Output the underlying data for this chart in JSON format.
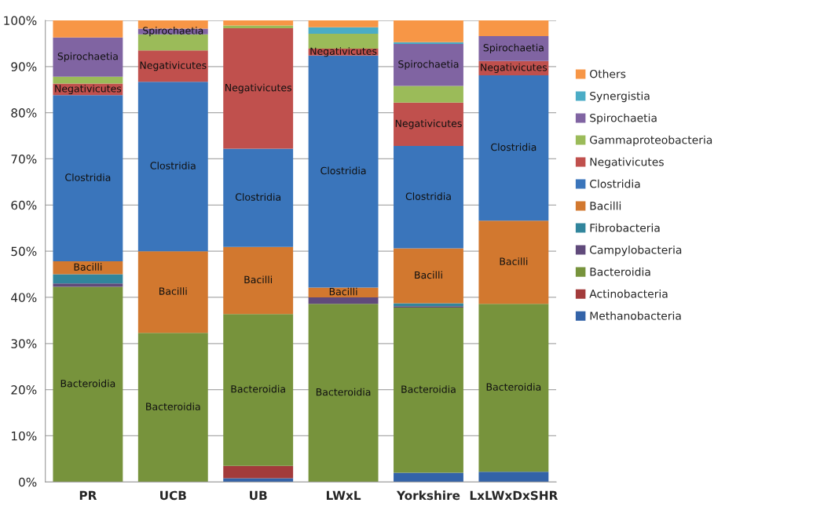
{
  "chart_data": {
    "type": "bar",
    "stacked": true,
    "categories": [
      "PR",
      "UCB",
      "UB",
      "LWxL",
      "Yorkshire",
      "LxLWxDxSHR"
    ],
    "series": [
      {
        "name": "Methanobacteria",
        "color": "#3363a8",
        "values": [
          0,
          0,
          0.8,
          0,
          2.0,
          2.2
        ]
      },
      {
        "name": "Actinobacteria",
        "color": "#a33b3b",
        "values": [
          0,
          0,
          2.7,
          0,
          0,
          0
        ]
      },
      {
        "name": "Bacteroidia",
        "color": "#77933c",
        "values": [
          42.3,
          32.3,
          32.9,
          38.6,
          35.8,
          36.4
        ],
        "value_labels": [
          "Bacteroidia",
          "Bacteroidia",
          "Bacteroidia",
          "Bacteroidia",
          "Bacteroidia",
          "Bacteroidia"
        ]
      },
      {
        "name": "Campylobacteria",
        "color": "#604a7b",
        "values": [
          0.7,
          0,
          0,
          1.4,
          0.3,
          0
        ]
      },
      {
        "name": "Fibrobacteria",
        "color": "#31859c",
        "values": [
          2.0,
          0,
          0,
          0,
          0.6,
          0
        ]
      },
      {
        "name": "Bacilli",
        "color": "#d2782f",
        "values": [
          2.8,
          17.7,
          14.5,
          2.1,
          11.9,
          18.0
        ],
        "value_labels": [
          "Bacilli",
          "Bacilli",
          "Bacilli",
          "Bacilli",
          "Bacilli",
          "Bacilli"
        ]
      },
      {
        "name": "Clostridia",
        "color": "#3a75bb",
        "values": [
          36.0,
          36.7,
          21.3,
          50.3,
          22.2,
          31.5
        ],
        "value_labels": [
          "Clostridia",
          "Clostridia",
          "Clostridia",
          "Clostridia",
          "Clostridia",
          "Clostridia"
        ]
      },
      {
        "name": "Negativicutes",
        "color": "#c0504d",
        "values": [
          2.5,
          6.8,
          26.1,
          1.5,
          9.4,
          3.1
        ],
        "value_labels": [
          "Negativicutes",
          "Negativicutes",
          "Negativicutes",
          "Negativicutes",
          "Negativicutes",
          "Negativicutes"
        ]
      },
      {
        "name": "Gammaproteobacteria",
        "color": "#9bbb59",
        "values": [
          1.5,
          3.5,
          0.6,
          3.2,
          3.6,
          0
        ]
      },
      {
        "name": "Spirochaetia",
        "color": "#8064a2",
        "values": [
          8.5,
          1.2,
          0,
          0,
          9.1,
          5.4
        ],
        "value_labels": [
          "Spirochaetia",
          "Spirochaetia",
          null,
          null,
          "Spirochaetia",
          "Spirochaetia"
        ]
      },
      {
        "name": "Synergistia",
        "color": "#4bacc6",
        "values": [
          0,
          0,
          0,
          1.4,
          0.4,
          0
        ]
      },
      {
        "name": "Others",
        "color": "#f79646",
        "values": [
          3.7,
          1.8,
          1.1,
          1.5,
          4.7,
          3.4
        ]
      }
    ],
    "ylim": [
      0,
      100
    ],
    "yticks": [
      {
        "value": 0,
        "label": "0%"
      },
      {
        "value": 10,
        "label": "10%"
      },
      {
        "value": 20,
        "label": "20%"
      },
      {
        "value": 30,
        "label": "30%"
      },
      {
        "value": 40,
        "label": "40%"
      },
      {
        "value": 50,
        "label": "50%"
      },
      {
        "value": 60,
        "label": "60%"
      },
      {
        "value": 70,
        "label": "70%"
      },
      {
        "value": 80,
        "label": "80%"
      },
      {
        "value": 90,
        "label": "90%"
      },
      {
        "value": 100,
        "label": "100%"
      }
    ],
    "grid": "y",
    "legend": "right"
  }
}
